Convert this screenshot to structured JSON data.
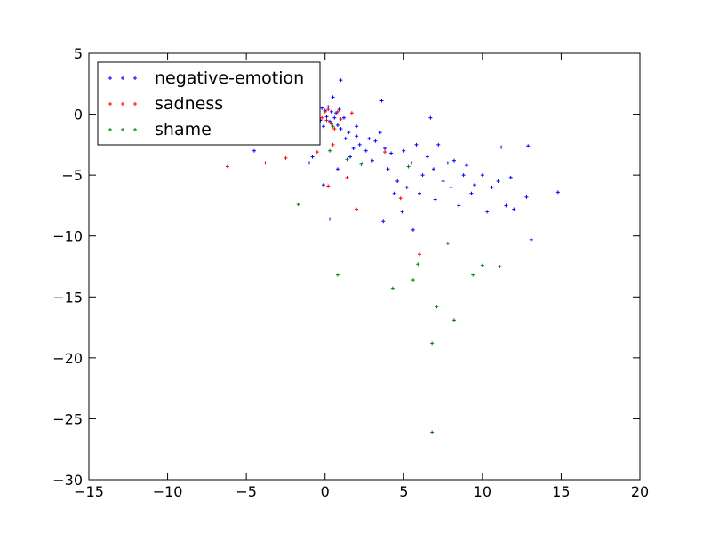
{
  "chart_data": {
    "type": "scatter",
    "title": "",
    "xlabel": "",
    "ylabel": "",
    "xlim": [
      -15,
      20
    ],
    "ylim": [
      -30,
      5
    ],
    "xticks": [
      -15,
      -10,
      -5,
      0,
      5,
      10,
      15,
      20
    ],
    "yticks": [
      -30,
      -25,
      -20,
      -15,
      -10,
      -5,
      0,
      5
    ],
    "xtick_labels": [
      "−15",
      "−10",
      "−5",
      "0",
      "5",
      "10",
      "15",
      "20"
    ],
    "ytick_labels": [
      "−30",
      "−25",
      "−20",
      "−15",
      "−10",
      "−5",
      "0",
      "5"
    ],
    "grid": false,
    "legend_position": "top-left",
    "series": [
      {
        "name": "negative-emotion",
        "color": "#0000ff",
        "marker": "plus",
        "points": [
          [
            -4.5,
            -3.0
          ],
          [
            -3.5,
            -1.5
          ],
          [
            -2.5,
            -1.0
          ],
          [
            -1.5,
            -2.0
          ],
          [
            -1.0,
            -4.0
          ],
          [
            -0.8,
            -3.5
          ],
          [
            -0.5,
            -2.0
          ],
          [
            -0.3,
            -0.5
          ],
          [
            -0.2,
            0.5
          ],
          [
            -0.1,
            -1.0
          ],
          [
            0.0,
            0.3
          ],
          [
            0.1,
            -0.2
          ],
          [
            0.2,
            0.6
          ],
          [
            0.3,
            -0.6
          ],
          [
            0.4,
            0.2
          ],
          [
            0.5,
            1.4
          ],
          [
            0.6,
            -0.3
          ],
          [
            0.7,
            0.1
          ],
          [
            0.8,
            -0.9
          ],
          [
            0.9,
            0.4
          ],
          [
            1.0,
            2.8
          ],
          [
            1.0,
            -1.2
          ],
          [
            1.2,
            -0.3
          ],
          [
            1.3,
            -2.0
          ],
          [
            1.5,
            -1.5
          ],
          [
            1.6,
            -3.5
          ],
          [
            1.8,
            -2.8
          ],
          [
            2.0,
            -1.0
          ],
          [
            2.2,
            -2.5
          ],
          [
            2.4,
            -4.0
          ],
          [
            2.6,
            -3.0
          ],
          [
            2.8,
            -2.0
          ],
          [
            3.0,
            -3.8
          ],
          [
            3.2,
            -2.2
          ],
          [
            3.5,
            -1.5
          ],
          [
            3.6,
            1.1
          ],
          [
            3.8,
            -2.8
          ],
          [
            4.0,
            -4.5
          ],
          [
            4.2,
            -3.2
          ],
          [
            4.4,
            -6.5
          ],
          [
            4.6,
            -5.5
          ],
          [
            5.0,
            -3.0
          ],
          [
            5.2,
            -6.0
          ],
          [
            5.5,
            -4.0
          ],
          [
            5.8,
            -2.5
          ],
          [
            6.0,
            -6.5
          ],
          [
            6.2,
            -5.0
          ],
          [
            6.5,
            -3.5
          ],
          [
            6.7,
            -0.3
          ],
          [
            6.9,
            -4.5
          ],
          [
            7.0,
            -7.0
          ],
          [
            7.2,
            -2.5
          ],
          [
            7.5,
            -5.5
          ],
          [
            7.8,
            -4.0
          ],
          [
            8.0,
            -6.0
          ],
          [
            8.2,
            -3.8
          ],
          [
            8.5,
            -7.5
          ],
          [
            8.8,
            -5.0
          ],
          [
            9.0,
            -4.2
          ],
          [
            9.3,
            -6.5
          ],
          [
            9.5,
            -5.8
          ],
          [
            10.0,
            -5.0
          ],
          [
            10.3,
            -8.0
          ],
          [
            10.6,
            -6.0
          ],
          [
            11.0,
            -5.5
          ],
          [
            11.2,
            -2.7
          ],
          [
            11.5,
            -7.5
          ],
          [
            11.8,
            -5.2
          ],
          [
            12.0,
            -7.8
          ],
          [
            12.8,
            -6.8
          ],
          [
            12.9,
            -2.6
          ],
          [
            13.1,
            -10.3
          ],
          [
            14.8,
            -6.4
          ],
          [
            3.7,
            -8.8
          ],
          [
            4.9,
            -8.0
          ],
          [
            5.6,
            -9.5
          ],
          [
            0.3,
            -8.6
          ],
          [
            -0.1,
            -5.8
          ],
          [
            0.8,
            -4.5
          ],
          [
            2.0,
            -1.8
          ]
        ]
      },
      {
        "name": "sadness",
        "color": "#ff0000",
        "marker": "plus",
        "points": [
          [
            -6.2,
            -4.3
          ],
          [
            -3.8,
            -4.0
          ],
          [
            -2.5,
            -3.6
          ],
          [
            -0.5,
            -3.1
          ],
          [
            -0.2,
            -0.3
          ],
          [
            0.0,
            0.2
          ],
          [
            0.1,
            -0.5
          ],
          [
            0.2,
            0.4
          ],
          [
            0.4,
            -0.8
          ],
          [
            0.5,
            -2.5
          ],
          [
            0.6,
            -1.2
          ],
          [
            0.8,
            0.2
          ],
          [
            1.0,
            -0.4
          ],
          [
            1.4,
            -5.2
          ],
          [
            2.0,
            -7.8
          ],
          [
            4.8,
            -6.9
          ],
          [
            6.0,
            -11.5
          ],
          [
            0.2,
            -5.9
          ],
          [
            3.8,
            -3.1
          ],
          [
            1.7,
            0.1
          ]
        ]
      },
      {
        "name": "shame",
        "color": "#008000",
        "marker": "plus",
        "points": [
          [
            -1.7,
            -7.4
          ],
          [
            0.3,
            -3.0
          ],
          [
            0.8,
            -13.2
          ],
          [
            2.3,
            -4.1
          ],
          [
            4.3,
            -14.3
          ],
          [
            5.6,
            -13.6
          ],
          [
            5.9,
            -12.3
          ],
          [
            6.8,
            -18.8
          ],
          [
            6.8,
            -26.1
          ],
          [
            7.1,
            -15.8
          ],
          [
            7.8,
            -10.6
          ],
          [
            8.2,
            -16.9
          ],
          [
            9.4,
            -13.2
          ],
          [
            10.0,
            -12.4
          ],
          [
            11.1,
            -12.5
          ],
          [
            0.5,
            -1.0
          ],
          [
            5.3,
            -4.3
          ],
          [
            1.4,
            -3.7
          ]
        ]
      }
    ]
  }
}
